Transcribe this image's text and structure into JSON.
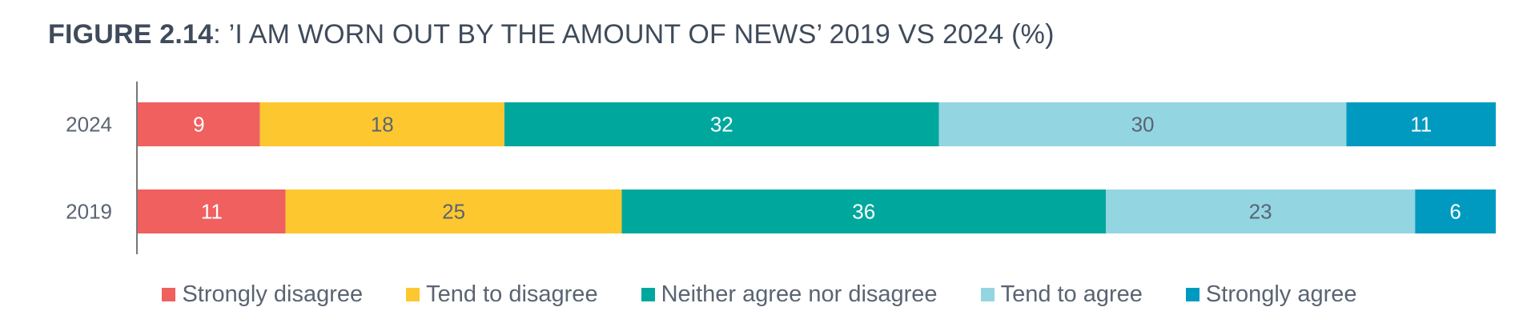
{
  "chart_data": {
    "type": "bar",
    "orientation": "horizontal",
    "stacked": true,
    "title_number": "FIGURE 2.14",
    "title": "’I AM WORN OUT BY THE AMOUNT OF NEWS’ 2019 VS 2024 (%)",
    "categories": [
      "2024",
      "2019"
    ],
    "series": [
      {
        "name": "Strongly disagree",
        "color": "#f0605e",
        "values": [
          9,
          11
        ],
        "label_color": "#ffffff"
      },
      {
        "name": "Tend to disagree",
        "color": "#fdc82f",
        "values": [
          18,
          25
        ],
        "label_color": "#5a6472"
      },
      {
        "name": "Neither agree nor disagree",
        "color": "#00a79d",
        "values": [
          32,
          36
        ],
        "label_color": "#ffffff"
      },
      {
        "name": "Tend to agree",
        "color": "#94d5e2",
        "values": [
          30,
          23
        ],
        "label_color": "#5a6472"
      },
      {
        "name": "Strongly agree",
        "color": "#009ac1",
        "values": [
          11,
          6
        ],
        "label_color": "#ffffff"
      }
    ],
    "xlim": [
      0,
      100
    ],
    "grid": false,
    "legend": "bottom"
  }
}
